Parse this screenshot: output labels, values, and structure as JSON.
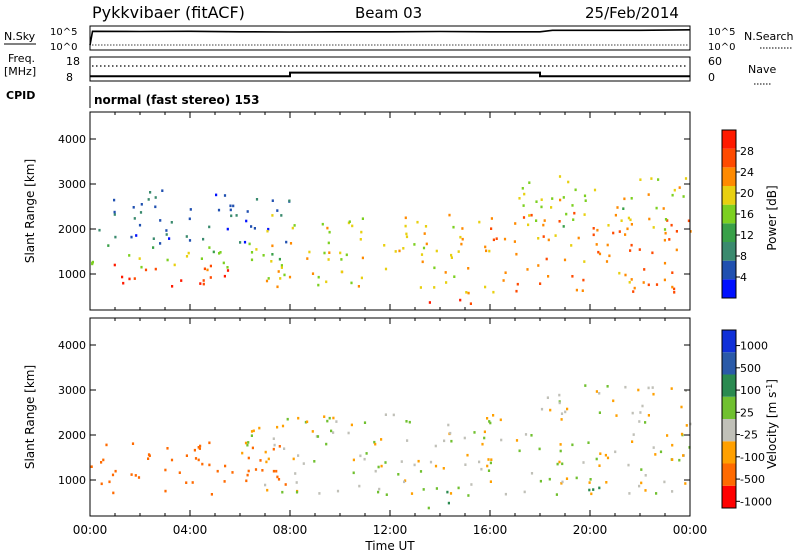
{
  "header": {
    "station": "Pykkvibaer (fitACF)",
    "beam": "Beam 03",
    "date": "25/Feb/2014"
  },
  "top_panels": {
    "nsky_label": "N.Sky",
    "nsky_ticks": [
      "10^5",
      "10^0"
    ],
    "nsearch_label": "N.Search",
    "freq_label": "Freq.",
    "freq_unit": "[MHz]",
    "freq_ticks": [
      "18",
      "8"
    ],
    "nave_label": "Nave",
    "nave_ticks": [
      "60",
      "0"
    ],
    "cpid_label": "CPID",
    "cpid_value": "normal (fast stereo) 153"
  },
  "colors": {
    "power": [
      "#0010ff",
      "#2050b0",
      "#3a8a6e",
      "#38a048",
      "#7cd020",
      "#e8d010",
      "#ff8a00",
      "#ff4a00",
      "#ff1a00"
    ],
    "velocity": [
      "#ff0000",
      "#ff6a00",
      "#ffa000",
      "#c0c0b8",
      "#70c030",
      "#2a8a50",
      "#2a5aa8",
      "#1030d8"
    ]
  },
  "chart_data": [
    {
      "type": "line",
      "name": "nsky",
      "x": [
        0,
        0.1,
        2,
        4,
        6,
        8,
        10,
        12,
        14,
        16,
        18,
        18.5,
        20,
        22,
        24
      ],
      "y": [
        1,
        3.9,
        3.85,
        3.9,
        3.8,
        3.75,
        3.8,
        3.8,
        3.85,
        3.8,
        3.8,
        4.1,
        4.1,
        4.1,
        4.2
      ],
      "yaxis_ticks": [
        "10^5",
        "10^0"
      ]
    },
    {
      "type": "line",
      "name": "frequency",
      "x": [
        0,
        8.0,
        8.0,
        18.0,
        18.0,
        24
      ],
      "y": [
        10.0,
        10.0,
        11.5,
        11.5,
        10.0,
        10.0
      ],
      "ylim": [
        8,
        18
      ]
    },
    {
      "type": "heatmap",
      "name": "power",
      "xlabel": "",
      "ylabel": "Slant Range [km]",
      "xlim": [
        0,
        24
      ],
      "ylim": [
        200,
        4600
      ],
      "yticks": [
        1000,
        2000,
        3000,
        4000
      ],
      "colorbar": {
        "label": "Power [dB]",
        "ticks": [
          4,
          8,
          12,
          16,
          20,
          24,
          28
        ],
        "range": [
          0,
          32
        ]
      },
      "features": [
        {
          "hours": [
            0,
            5.5
          ],
          "range_km": [
            700,
            1300
          ],
          "value": 28
        },
        {
          "hours": [
            0,
            8
          ],
          "range_km": [
            1100,
            1700
          ],
          "value": 16
        },
        {
          "hours": [
            0,
            8
          ],
          "range_km": [
            1700,
            2900
          ],
          "value": 6
        },
        {
          "hours": [
            7,
            15
          ],
          "range_km": [
            700,
            2400
          ],
          "value": 20
        },
        {
          "hours": [
            13.5,
            15.5
          ],
          "range_km": [
            300,
            600
          ],
          "value": 30
        },
        {
          "hours": [
            15,
            24
          ],
          "range_km": [
            600,
            2400
          ],
          "value": 24
        },
        {
          "hours": [
            17,
            24
          ],
          "range_km": [
            2000,
            3200
          ],
          "value": 18
        }
      ]
    },
    {
      "type": "heatmap",
      "name": "velocity",
      "xlabel": "Time UT",
      "ylabel": "Slant Range [km]",
      "xlim": [
        0,
        24
      ],
      "ylim": [
        200,
        4600
      ],
      "xtick_labels": [
        "00:00",
        "04:00",
        "08:00",
        "12:00",
        "16:00",
        "20:00",
        "00:00"
      ],
      "yticks": [
        1000,
        2000,
        3000,
        4000
      ],
      "colorbar": {
        "label": "Velocity [m s^-1]",
        "ticks": [
          1000,
          500,
          100,
          25,
          -25,
          -100,
          -500,
          -1000
        ]
      },
      "features": [
        {
          "hours": [
            0,
            8
          ],
          "range_km": [
            700,
            1900
          ],
          "value": -300
        },
        {
          "hours": [
            6,
            18
          ],
          "range_km": [
            700,
            2500
          ],
          "value": 0
        },
        {
          "hours": [
            13.5,
            15.5
          ],
          "range_km": [
            400,
            800
          ],
          "value": 80
        },
        {
          "hours": [
            18,
            24
          ],
          "range_km": [
            700,
            3200
          ],
          "value": 0
        },
        {
          "hours": [
            19,
            20.5
          ],
          "range_km": [
            800,
            1200
          ],
          "value": 300
        }
      ]
    }
  ]
}
